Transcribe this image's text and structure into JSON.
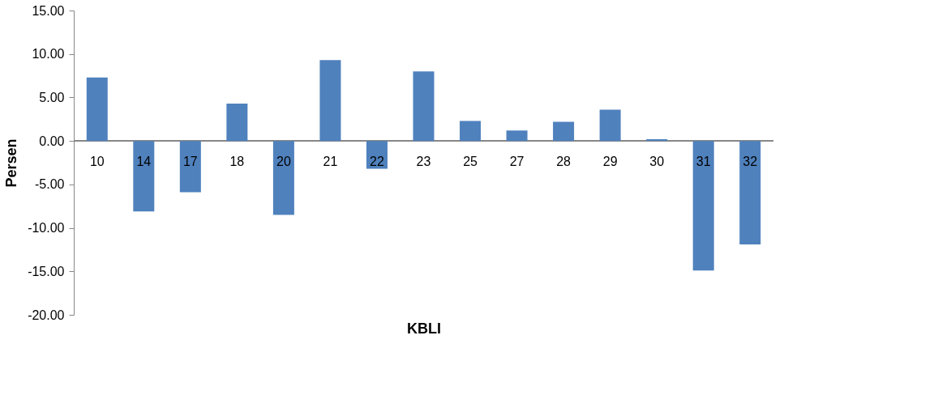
{
  "chart_data": {
    "type": "bar",
    "xlabel": "KBLI",
    "ylabel": "Persen",
    "categories": [
      "10",
      "14",
      "17",
      "18",
      "20",
      "21",
      "22",
      "23",
      "25",
      "27",
      "28",
      "29",
      "30",
      "31",
      "32"
    ],
    "values": [
      7.3,
      -8.1,
      -5.9,
      4.3,
      -8.5,
      9.3,
      -3.2,
      8.0,
      2.3,
      1.2,
      2.2,
      3.6,
      0.2,
      -14.9,
      -11.9
    ],
    "color": "#4f81bd",
    "ylim": [
      -20,
      15
    ],
    "yticks": [
      {
        "value": -20,
        "label": "-20.00"
      },
      {
        "value": -15,
        "label": "-15.00"
      },
      {
        "value": -10,
        "label": "-10.00"
      },
      {
        "value": -5,
        "label": "-5.00"
      },
      {
        "value": 0,
        "label": "0.00"
      },
      {
        "value": 5,
        "label": "5.00"
      },
      {
        "value": 10,
        "label": "10.00"
      },
      {
        "value": 15,
        "label": "15.00"
      }
    ],
    "grid": false
  }
}
